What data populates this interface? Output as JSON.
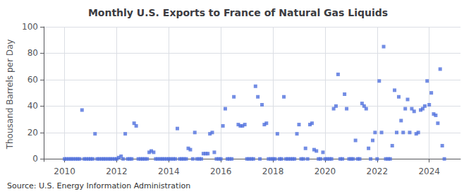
{
  "chart_data": {
    "type": "scatter",
    "title": "Monthly U.S. Exports to France of Natural Gas Liquids",
    "ylabel": "Thousand Barrels per Day",
    "annotation": "Source: U.S. Energy Information Administration",
    "marker": "square",
    "grid": true,
    "xlim": [
      2009.2,
      2025.2
    ],
    "xticks": [
      2010,
      2012,
      2014,
      2016,
      2018,
      2020,
      2022,
      2024
    ],
    "ylim": [
      -2,
      100
    ],
    "yticks": [
      0,
      20,
      40,
      60,
      80,
      100
    ],
    "x": [
      2010.0,
      2010.08,
      2010.17,
      2010.25,
      2010.33,
      2010.42,
      2010.5,
      2010.58,
      2010.67,
      2010.75,
      2010.83,
      2010.92,
      2011.0,
      2011.08,
      2011.17,
      2011.25,
      2011.33,
      2011.42,
      2011.5,
      2011.58,
      2011.67,
      2011.75,
      2011.83,
      2011.92,
      2012.0,
      2012.08,
      2012.17,
      2012.25,
      2012.33,
      2012.42,
      2012.5,
      2012.58,
      2012.67,
      2012.75,
      2012.83,
      2012.92,
      2013.0,
      2013.08,
      2013.17,
      2013.25,
      2013.33,
      2013.42,
      2013.5,
      2013.58,
      2013.67,
      2013.75,
      2013.83,
      2013.92,
      2014.0,
      2014.08,
      2014.17,
      2014.25,
      2014.33,
      2014.42,
      2014.5,
      2014.58,
      2014.67,
      2014.75,
      2014.83,
      2014.92,
      2015.0,
      2015.08,
      2015.17,
      2015.25,
      2015.33,
      2015.42,
      2015.5,
      2015.58,
      2015.67,
      2015.75,
      2015.83,
      2015.92,
      2016.0,
      2016.08,
      2016.17,
      2016.25,
      2016.33,
      2016.42,
      2016.5,
      2016.67,
      2016.75,
      2016.83,
      2016.92,
      2017.0,
      2017.08,
      2017.17,
      2017.25,
      2017.33,
      2017.42,
      2017.5,
      2017.58,
      2017.67,
      2017.75,
      2017.83,
      2017.92,
      2018.0,
      2018.08,
      2018.17,
      2018.25,
      2018.33,
      2018.42,
      2018.5,
      2018.58,
      2018.67,
      2018.75,
      2018.83,
      2018.92,
      2019.0,
      2019.08,
      2019.17,
      2019.25,
      2019.33,
      2019.42,
      2019.5,
      2019.58,
      2019.67,
      2019.75,
      2019.83,
      2019.92,
      2020.0,
      2020.08,
      2020.17,
      2020.25,
      2020.33,
      2020.42,
      2020.5,
      2020.58,
      2020.67,
      2020.75,
      2020.83,
      2020.92,
      2021.0,
      2021.08,
      2021.17,
      2021.25,
      2021.33,
      2021.42,
      2021.5,
      2021.58,
      2021.67,
      2021.75,
      2021.83,
      2021.92,
      2022.0,
      2022.08,
      2022.17,
      2022.25,
      2022.33,
      2022.42,
      2022.5,
      2022.58,
      2022.67,
      2022.75,
      2022.83,
      2022.92,
      2023.0,
      2023.08,
      2023.17,
      2023.25,
      2023.33,
      2023.42,
      2023.5,
      2023.58,
      2023.67,
      2023.75,
      2023.83,
      2023.92,
      2024.0,
      2024.08,
      2024.17,
      2024.25,
      2024.33,
      2024.42,
      2024.5,
      2024.58
    ],
    "values": [
      0,
      0,
      0,
      0,
      0,
      0,
      0,
      0,
      37,
      0,
      0,
      0,
      0,
      0,
      19,
      0,
      0,
      0,
      0,
      0,
      0,
      0,
      0,
      0,
      0,
      1,
      2,
      0,
      19,
      0,
      0,
      0,
      27,
      25,
      0,
      0,
      0,
      0,
      0,
      5,
      6,
      5,
      0,
      0,
      0,
      0,
      0,
      0,
      0,
      0,
      0,
      0,
      23,
      0,
      0,
      0,
      0,
      8,
      7,
      0,
      20,
      0,
      0,
      0,
      4,
      4,
      4,
      19,
      20,
      5,
      0,
      0,
      0,
      25,
      38,
      0,
      0,
      0,
      47,
      26,
      25,
      25,
      26,
      0,
      0,
      0,
      0,
      55,
      47,
      0,
      41,
      26,
      27,
      0,
      0,
      0,
      0,
      19,
      0,
      0,
      47,
      0,
      0,
      0,
      0,
      0,
      19,
      26,
      0,
      0,
      8,
      0,
      26,
      27,
      7,
      6,
      0,
      0,
      5,
      0,
      0,
      0,
      0,
      38,
      40,
      64,
      0,
      0,
      49,
      38,
      0,
      0,
      0,
      14,
      0,
      0,
      42,
      40,
      38,
      8,
      0,
      14,
      20,
      0,
      59,
      20,
      85,
      0,
      0,
      0,
      10,
      52,
      20,
      47,
      29,
      20,
      38,
      45,
      20,
      38,
      36,
      19,
      20,
      37,
      38,
      40,
      59,
      41,
      50,
      34,
      33,
      27,
      68,
      10,
      0
    ]
  }
}
